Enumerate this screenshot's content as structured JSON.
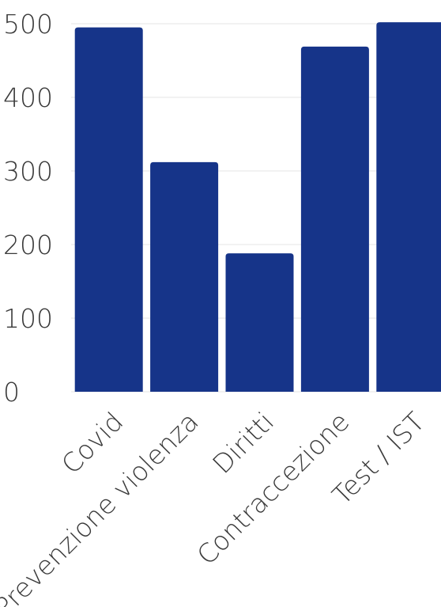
{
  "chart_data": {
    "type": "bar",
    "categories": [
      "Covid",
      "Prevenzione violenza",
      "Diritti",
      "Contraccezione",
      "Test / IST"
    ],
    "values": [
      495,
      312,
      188,
      469,
      502
    ],
    "color": "#163489",
    "ylim": [
      0,
      500
    ],
    "yticks": [
      0,
      100,
      200,
      300,
      400,
      500
    ],
    "grid": true
  }
}
